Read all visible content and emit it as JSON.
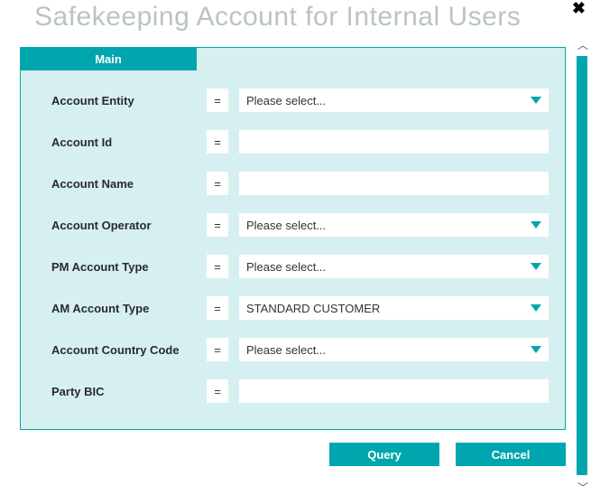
{
  "colors": {
    "accent": "#00a6ad",
    "panel_bg": "#d6f0f1",
    "title_gray": "#b9c4c5",
    "white": "#ffffff"
  },
  "title": "Safekeeping Account for Internal Users",
  "tab_label": "Main",
  "operator_symbol": "=",
  "placeholder_select": "Please select...",
  "fields": {
    "account_entity": {
      "label": "Account Entity",
      "type": "select",
      "value": "Please select..."
    },
    "account_id": {
      "label": "Account Id",
      "type": "input",
      "value": ""
    },
    "account_name": {
      "label": "Account Name",
      "type": "input",
      "value": ""
    },
    "account_operator": {
      "label": "Account Operator",
      "type": "select",
      "value": "Please select..."
    },
    "pm_account_type": {
      "label": "PM Account Type",
      "type": "select",
      "value": "Please select..."
    },
    "am_account_type": {
      "label": "AM Account Type",
      "type": "select",
      "value": "STANDARD CUSTOMER"
    },
    "account_country": {
      "label": "Account Country Code",
      "type": "select",
      "value": "Please select..."
    },
    "party_bic": {
      "label": "Party BIC",
      "type": "input",
      "value": ""
    }
  },
  "buttons": {
    "query": "Query",
    "cancel": "Cancel"
  }
}
